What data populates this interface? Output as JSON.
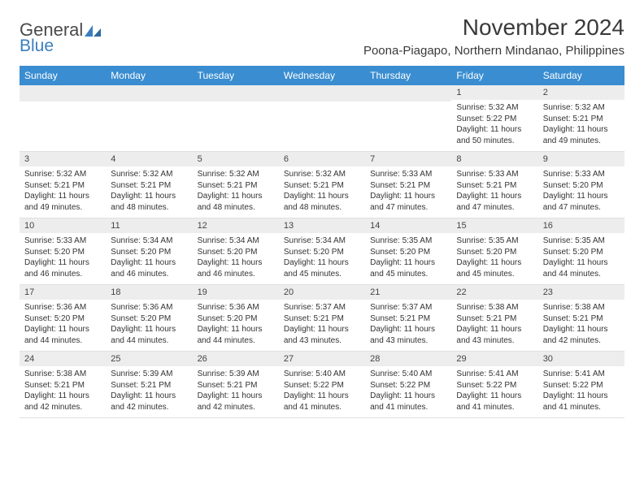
{
  "logo": {
    "text1": "General",
    "text2": "Blue"
  },
  "title": "November 2024",
  "location": "Poona-Piagapo, Northern Mindanao, Philippines",
  "colors": {
    "header_bg": "#3a8dd0",
    "header_text": "#ffffff",
    "daynum_bg": "#ededed",
    "body_text": "#333333",
    "logo_gray": "#4a4a4a",
    "logo_blue": "#3a7ebf"
  },
  "dow": [
    "Sunday",
    "Monday",
    "Tuesday",
    "Wednesday",
    "Thursday",
    "Friday",
    "Saturday"
  ],
  "weeks": [
    [
      null,
      null,
      null,
      null,
      null,
      {
        "n": "1",
        "sr": "5:32 AM",
        "ss": "5:22 PM",
        "dl": "11 hours and 50 minutes."
      },
      {
        "n": "2",
        "sr": "5:32 AM",
        "ss": "5:21 PM",
        "dl": "11 hours and 49 minutes."
      }
    ],
    [
      {
        "n": "3",
        "sr": "5:32 AM",
        "ss": "5:21 PM",
        "dl": "11 hours and 49 minutes."
      },
      {
        "n": "4",
        "sr": "5:32 AM",
        "ss": "5:21 PM",
        "dl": "11 hours and 48 minutes."
      },
      {
        "n": "5",
        "sr": "5:32 AM",
        "ss": "5:21 PM",
        "dl": "11 hours and 48 minutes."
      },
      {
        "n": "6",
        "sr": "5:32 AM",
        "ss": "5:21 PM",
        "dl": "11 hours and 48 minutes."
      },
      {
        "n": "7",
        "sr": "5:33 AM",
        "ss": "5:21 PM",
        "dl": "11 hours and 47 minutes."
      },
      {
        "n": "8",
        "sr": "5:33 AM",
        "ss": "5:21 PM",
        "dl": "11 hours and 47 minutes."
      },
      {
        "n": "9",
        "sr": "5:33 AM",
        "ss": "5:20 PM",
        "dl": "11 hours and 47 minutes."
      }
    ],
    [
      {
        "n": "10",
        "sr": "5:33 AM",
        "ss": "5:20 PM",
        "dl": "11 hours and 46 minutes."
      },
      {
        "n": "11",
        "sr": "5:34 AM",
        "ss": "5:20 PM",
        "dl": "11 hours and 46 minutes."
      },
      {
        "n": "12",
        "sr": "5:34 AM",
        "ss": "5:20 PM",
        "dl": "11 hours and 46 minutes."
      },
      {
        "n": "13",
        "sr": "5:34 AM",
        "ss": "5:20 PM",
        "dl": "11 hours and 45 minutes."
      },
      {
        "n": "14",
        "sr": "5:35 AM",
        "ss": "5:20 PM",
        "dl": "11 hours and 45 minutes."
      },
      {
        "n": "15",
        "sr": "5:35 AM",
        "ss": "5:20 PM",
        "dl": "11 hours and 45 minutes."
      },
      {
        "n": "16",
        "sr": "5:35 AM",
        "ss": "5:20 PM",
        "dl": "11 hours and 44 minutes."
      }
    ],
    [
      {
        "n": "17",
        "sr": "5:36 AM",
        "ss": "5:20 PM",
        "dl": "11 hours and 44 minutes."
      },
      {
        "n": "18",
        "sr": "5:36 AM",
        "ss": "5:20 PM",
        "dl": "11 hours and 44 minutes."
      },
      {
        "n": "19",
        "sr": "5:36 AM",
        "ss": "5:20 PM",
        "dl": "11 hours and 44 minutes."
      },
      {
        "n": "20",
        "sr": "5:37 AM",
        "ss": "5:21 PM",
        "dl": "11 hours and 43 minutes."
      },
      {
        "n": "21",
        "sr": "5:37 AM",
        "ss": "5:21 PM",
        "dl": "11 hours and 43 minutes."
      },
      {
        "n": "22",
        "sr": "5:38 AM",
        "ss": "5:21 PM",
        "dl": "11 hours and 43 minutes."
      },
      {
        "n": "23",
        "sr": "5:38 AM",
        "ss": "5:21 PM",
        "dl": "11 hours and 42 minutes."
      }
    ],
    [
      {
        "n": "24",
        "sr": "5:38 AM",
        "ss": "5:21 PM",
        "dl": "11 hours and 42 minutes."
      },
      {
        "n": "25",
        "sr": "5:39 AM",
        "ss": "5:21 PM",
        "dl": "11 hours and 42 minutes."
      },
      {
        "n": "26",
        "sr": "5:39 AM",
        "ss": "5:21 PM",
        "dl": "11 hours and 42 minutes."
      },
      {
        "n": "27",
        "sr": "5:40 AM",
        "ss": "5:22 PM",
        "dl": "11 hours and 41 minutes."
      },
      {
        "n": "28",
        "sr": "5:40 AM",
        "ss": "5:22 PM",
        "dl": "11 hours and 41 minutes."
      },
      {
        "n": "29",
        "sr": "5:41 AM",
        "ss": "5:22 PM",
        "dl": "11 hours and 41 minutes."
      },
      {
        "n": "30",
        "sr": "5:41 AM",
        "ss": "5:22 PM",
        "dl": "11 hours and 41 minutes."
      }
    ]
  ],
  "labels": {
    "sunrise": "Sunrise: ",
    "sunset": "Sunset: ",
    "daylight": "Daylight: "
  }
}
